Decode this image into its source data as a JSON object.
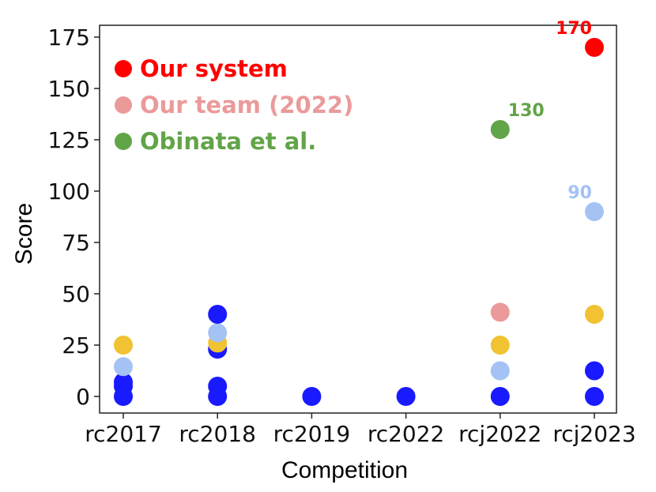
{
  "chart_data": {
    "type": "scatter",
    "xlabel": "Competition",
    "ylabel": "Score",
    "categories": [
      "rc2017",
      "rc2018",
      "rc2019",
      "rc2022",
      "rcj2022",
      "rcj2023"
    ],
    "ylim": [
      -10,
      178
    ],
    "yticks": [
      0,
      25,
      50,
      75,
      100,
      125,
      150,
      175
    ],
    "grid": false,
    "legend_position": "top-left",
    "legend": [
      {
        "label": "Our system",
        "color": "#ff0000"
      },
      {
        "label": "Our team (2022)",
        "color": "#eb9a9a"
      },
      {
        "label": "Obinata et al.",
        "color": "#62a448"
      }
    ],
    "points": [
      {
        "category": "rc2017",
        "y": 0,
        "color": "#1a1aff"
      },
      {
        "category": "rc2017",
        "y": 5,
        "color": "#1a1aff"
      },
      {
        "category": "rc2017",
        "y": 7,
        "color": "#1a1aff"
      },
      {
        "category": "rc2017",
        "y": 14.5,
        "color": "#a4c2f4"
      },
      {
        "category": "rc2017",
        "y": 25,
        "color": "#f1c232"
      },
      {
        "category": "rc2018",
        "y": 0,
        "color": "#1a1aff"
      },
      {
        "category": "rc2018",
        "y": 5,
        "color": "#1a1aff"
      },
      {
        "category": "rc2018",
        "y": 23,
        "color": "#1a1aff"
      },
      {
        "category": "rc2018",
        "y": 26,
        "color": "#f1c232"
      },
      {
        "category": "rc2018",
        "y": 31,
        "color": "#a4c2f4"
      },
      {
        "category": "rc2018",
        "y": 40,
        "color": "#1a1aff"
      },
      {
        "category": "rc2019",
        "y": 0,
        "color": "#1a1aff"
      },
      {
        "category": "rc2022",
        "y": 0,
        "color": "#1a1aff"
      },
      {
        "category": "rcj2022",
        "y": 0,
        "color": "#1a1aff"
      },
      {
        "category": "rcj2022",
        "y": 12.5,
        "color": "#a4c2f4"
      },
      {
        "category": "rcj2022",
        "y": 25,
        "color": "#f1c232"
      },
      {
        "category": "rcj2022",
        "y": 41,
        "color": "#eb9a9a"
      },
      {
        "category": "rcj2022",
        "y": 130,
        "color": "#62a448",
        "label": "130"
      },
      {
        "category": "rcj2023",
        "y": 0,
        "color": "#1a1aff"
      },
      {
        "category": "rcj2023",
        "y": 12.5,
        "color": "#1a1aff"
      },
      {
        "category": "rcj2023",
        "y": 40,
        "color": "#f1c232"
      },
      {
        "category": "rcj2023",
        "y": 90,
        "color": "#a4c2f4",
        "label": "90",
        "label_side": "left"
      },
      {
        "category": "rcj2023",
        "y": 170,
        "color": "#ff0000",
        "label": "170",
        "label_side": "left"
      }
    ]
  }
}
